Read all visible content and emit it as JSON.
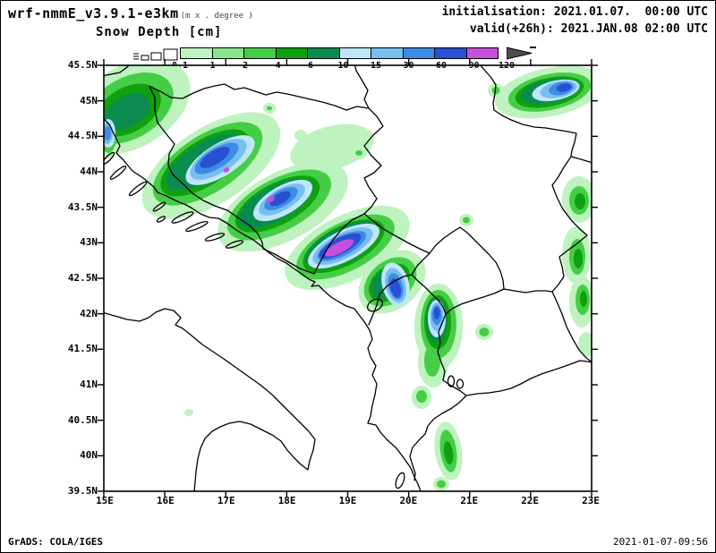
{
  "header": {
    "model_title": "wrf-nmmE_v3.9.1-e3km",
    "model_note": "(m x . degree )",
    "field_title": "Snow Depth [cm]",
    "init_line": "initialisation: 2021.01.07.  00:00 UTC",
    "valid_line": "valid(+26h): 2021.JAN.08 02:00 UTC"
  },
  "legend": {
    "tick_labels": [
      "0.1",
      "1",
      "2",
      "4",
      "6",
      "10",
      "15",
      "30",
      "60",
      "90",
      "120"
    ],
    "colors": [
      "#bef2be",
      "#8ae68a",
      "#46cd46",
      "#0fa00f",
      "#0a8c50",
      "#bee6fa",
      "#78bef0",
      "#3c8ce6",
      "#2850d2",
      "#c850dc"
    ],
    "overflow_color": "#4d4d4d",
    "units": "cm"
  },
  "axes": {
    "lat_labels": [
      "45.5N",
      "45N",
      "44.5N",
      "44N",
      "43.5N",
      "43N",
      "42.5N",
      "42N",
      "41.5N",
      "41N",
      "40.5N",
      "40N",
      "39.5N"
    ],
    "lon_labels": [
      "15E",
      "16E",
      "17E",
      "18E",
      "19E",
      "20E",
      "21E",
      "22E",
      "23E"
    ]
  },
  "footer": {
    "credit": "GrADS: COLA/IGES",
    "timestamp": "2021-01-07-09:56"
  }
}
